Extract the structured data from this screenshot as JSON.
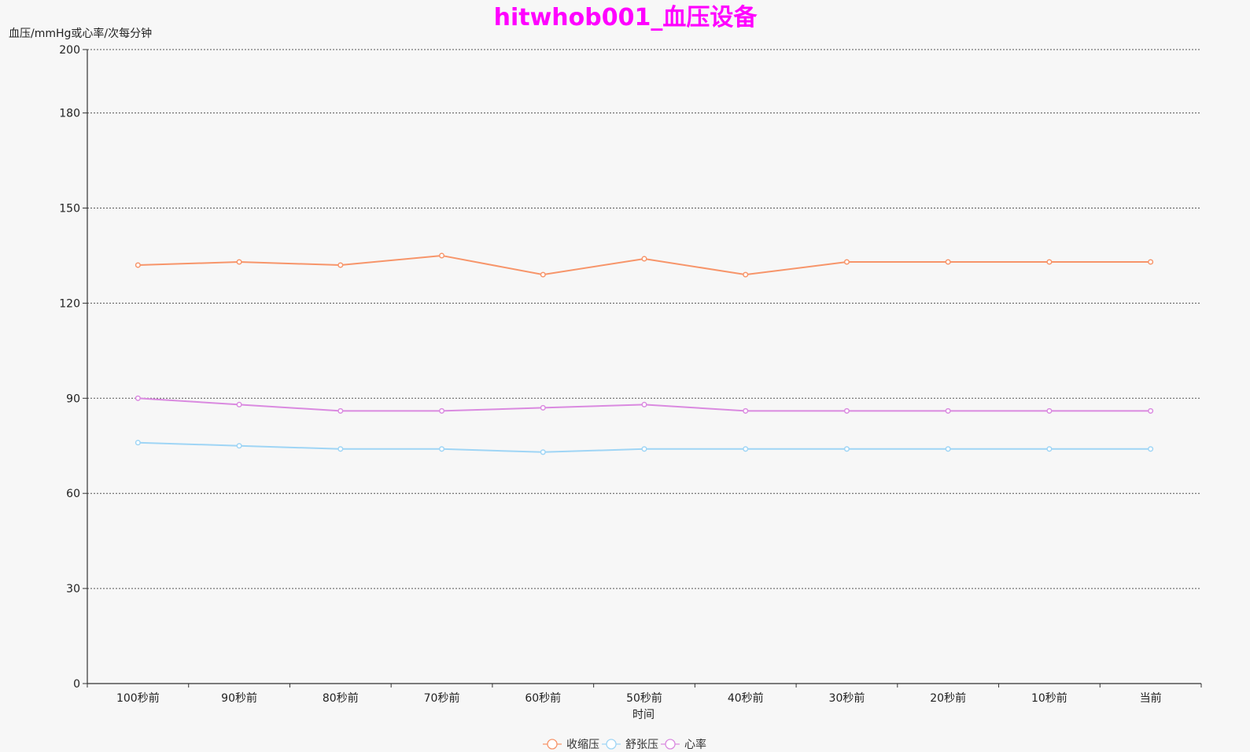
{
  "chart_data": {
    "type": "line",
    "title": "hitwhob001_血压设备",
    "title_color": "#ff00ff",
    "ylabel": "血压/mmHg或心率/次每分钟",
    "xlabel": "时间",
    "y_ticks": [
      0,
      30,
      60,
      90,
      120,
      150,
      180,
      200
    ],
    "ylim": [
      0,
      200
    ],
    "grid": true,
    "grid_style": "dotted",
    "legend_position": "bottom-center",
    "categories": [
      "100秒前",
      "90秒前",
      "80秒前",
      "70秒前",
      "60秒前",
      "50秒前",
      "40秒前",
      "30秒前",
      "20秒前",
      "10秒前",
      "当前"
    ],
    "series": [
      {
        "name": "收缩压",
        "color": "#f7956a",
        "values": [
          132,
          133,
          132,
          135,
          129,
          134,
          129,
          133,
          133,
          133,
          133
        ]
      },
      {
        "name": "舒张压",
        "color": "#9fd5f5",
        "values": [
          76,
          75,
          74,
          74,
          73,
          74,
          74,
          74,
          74,
          74,
          74
        ]
      },
      {
        "name": "心率",
        "color": "#da8ae0",
        "values": [
          90,
          88,
          86,
          86,
          87,
          88,
          86,
          86,
          86,
          86,
          86
        ]
      }
    ]
  }
}
